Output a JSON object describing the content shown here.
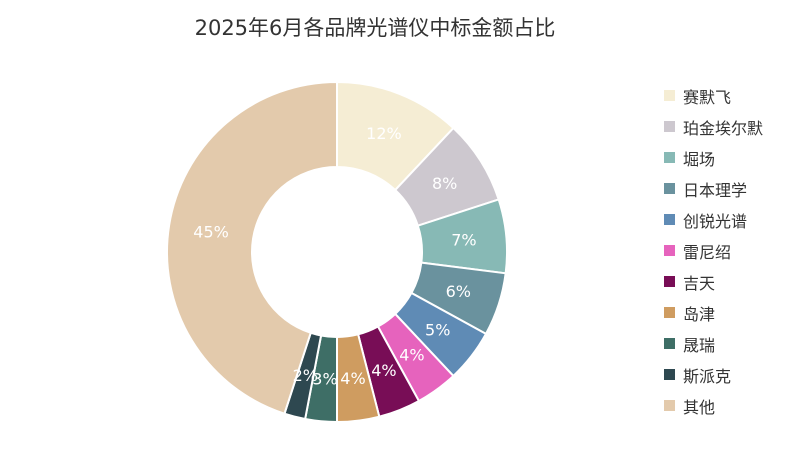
{
  "chart_data": {
    "type": "pie",
    "title": "2025年6月各品牌光谱仪中标金额占比",
    "categories": [
      "赛默飞",
      "珀金埃尔默",
      "堀场",
      "日本理学",
      "创锐光谱",
      "雷尼绍",
      "吉天",
      "岛津",
      "晟瑞",
      "斯派克",
      "其他"
    ],
    "values": [
      12,
      8,
      7,
      6,
      5,
      4,
      4,
      4,
      3,
      2,
      45
    ],
    "labels": [
      "12%",
      "8%",
      "7%",
      "6%",
      "5%",
      "4%",
      "4%",
      "4%",
      "3%",
      "2%",
      "45%"
    ],
    "unit": "%",
    "donut": true,
    "legend_position": "right",
    "colors": [
      "#F5EDD4",
      "#CDC8CF",
      "#87B9B5",
      "#6A929E",
      "#5F8BB5",
      "#E663BD",
      "#780D56",
      "#CF9C60",
      "#3E6E66",
      "#2E4850",
      "#E3CAAC"
    ]
  }
}
